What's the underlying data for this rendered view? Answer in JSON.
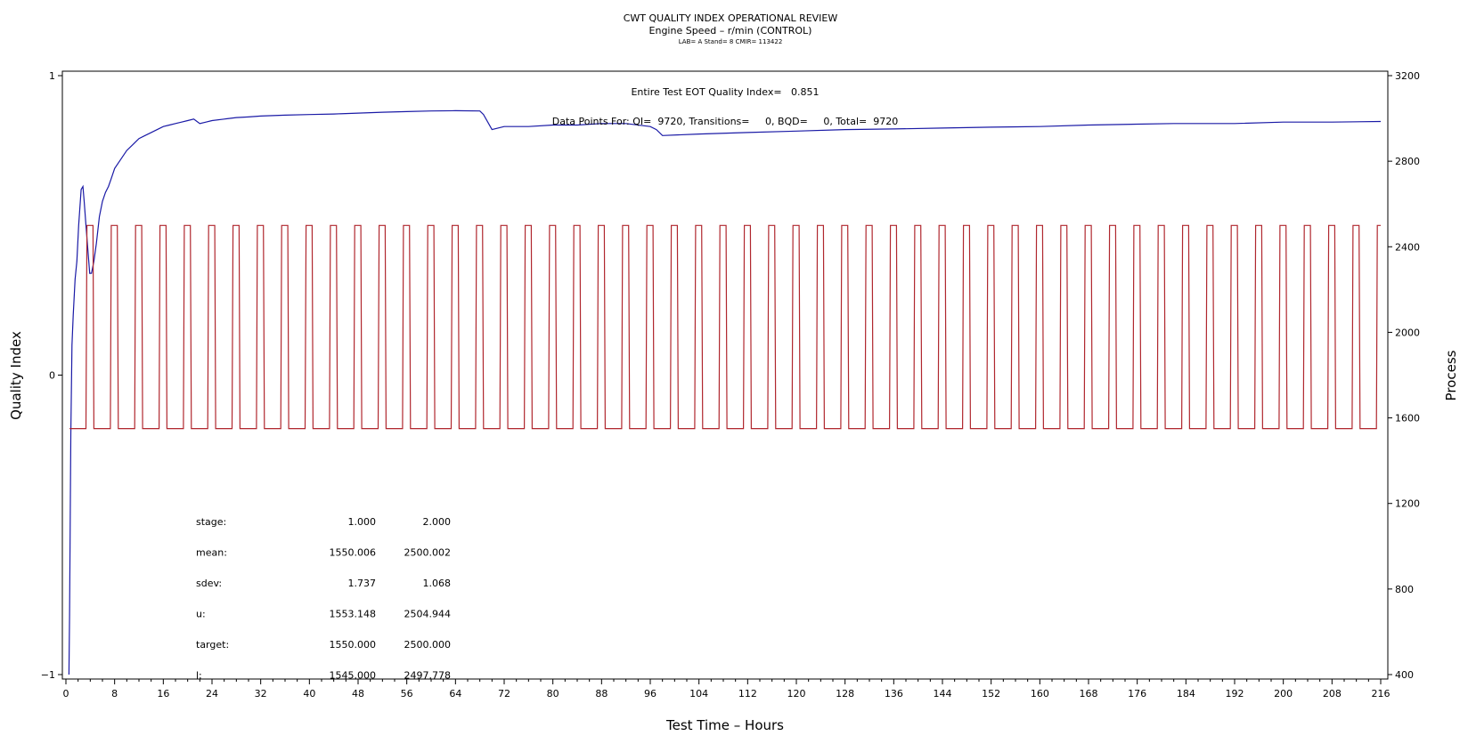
{
  "chart_data": {
    "type": "line",
    "title": "CWT QUALITY INDEX OPERATIONAL REVIEW",
    "subtitle": "Engine Speed – r/min (CONTROL)",
    "subtitle2": "LAB= A Stand= 8 CMIR= 113422",
    "xlabel": "Test Time – Hours",
    "ylabel_left": "Quality Index",
    "ylabel_right": "Process",
    "xlim": [
      0,
      216
    ],
    "ylim_left": [
      -1,
      1
    ],
    "ylim_right": [
      400,
      3200
    ],
    "x_ticks": [
      "0",
      "8",
      "16",
      "24",
      "32",
      "40",
      "48",
      "56",
      "64",
      "72",
      "80",
      "88",
      "96",
      "104",
      "112",
      "120",
      "128",
      "136",
      "144",
      "152",
      "160",
      "168",
      "176",
      "184",
      "192",
      "200",
      "208",
      "216"
    ],
    "y_left_ticks": [
      "−1",
      "0",
      "1"
    ],
    "y_right_ticks": [
      "400",
      "800",
      "1200",
      "1600",
      "2000",
      "2400",
      "2800",
      "3200"
    ],
    "annotations": {
      "eot": "Entire Test EOT Quality Index=   0.851",
      "points": "Data Points For: QI=  9720, Transitions=     0, BQD=     0, Total=  9720"
    },
    "stats_table": {
      "rows": [
        {
          "label": "stage:",
          "v1": "1.000",
          "v2": "2.000"
        },
        {
          "label": "mean:",
          "v1": "1550.006",
          "v2": "2500.002"
        },
        {
          "label": "sdev:",
          "v1": "1.737",
          "v2": "1.068"
        },
        {
          "label": "u:",
          "v1": "1553.148",
          "v2": "2504.944"
        },
        {
          "label": "target:",
          "v1": "1550.000",
          "v2": "2500.000"
        },
        {
          "label": "l:",
          "v1": "1545.000",
          "v2": "2497.778"
        }
      ]
    },
    "series": [
      {
        "axis": "left",
        "color": "#1a1aa6",
        "x": [
          0.5,
          0.6,
          0.7,
          0.8,
          1.0,
          1.2,
          1.5,
          1.8,
          2.1,
          2.5,
          2.8,
          3.0,
          3.3,
          3.6,
          3.9,
          4.2,
          4.6,
          5.0,
          5.5,
          6.0,
          6.5,
          7.0,
          7.5,
          8.0,
          9.0,
          10.0,
          11.0,
          12.0,
          13.0,
          14.0,
          15.0,
          16.0,
          17.0,
          18.0,
          19.0,
          20.0,
          21.0,
          22.0,
          23.0,
          24.0,
          26.0,
          28.0,
          30.0,
          32.0,
          36.0,
          40.0,
          44.0,
          48.0,
          52.0,
          56.0,
          60.0,
          64.0,
          68.0,
          68.6,
          70.0,
          72.0,
          76.0,
          80.0,
          84.0,
          88.0,
          92.0,
          96.0,
          97.0,
          98.0,
          104.0,
          112.0,
          120.0,
          128.0,
          136.0,
          144.0,
          152.0,
          160.0,
          168.0,
          176.0,
          182.0,
          183.0,
          184.0,
          192.0,
          200.0,
          208.0,
          216.0
        ],
        "values": [
          -1.0,
          -0.8,
          -0.5,
          -0.2,
          0.1,
          0.2,
          0.32,
          0.38,
          0.5,
          0.62,
          0.63,
          0.58,
          0.5,
          0.42,
          0.34,
          0.34,
          0.38,
          0.44,
          0.53,
          0.58,
          0.61,
          0.63,
          0.66,
          0.69,
          0.72,
          0.75,
          0.77,
          0.79,
          0.8,
          0.81,
          0.82,
          0.83,
          0.835,
          0.84,
          0.845,
          0.85,
          0.855,
          0.84,
          0.845,
          0.85,
          0.855,
          0.86,
          0.862,
          0.865,
          0.868,
          0.87,
          0.872,
          0.875,
          0.878,
          0.88,
          0.882,
          0.883,
          0.882,
          0.87,
          0.82,
          0.83,
          0.83,
          0.835,
          0.835,
          0.84,
          0.84,
          0.83,
          0.82,
          0.8,
          0.805,
          0.81,
          0.815,
          0.82,
          0.822,
          0.825,
          0.828,
          0.83,
          0.835,
          0.838,
          0.84,
          0.84,
          0.84,
          0.84,
          0.845,
          0.845,
          0.847
        ]
      },
      {
        "axis": "right",
        "color": "#b0272e",
        "type": "cycle",
        "x_start": 0.6,
        "x_end": 216,
        "period": 4.0,
        "high_duration": 1.0,
        "ramp": 0.15,
        "low": 1550,
        "high": 2500
      }
    ]
  }
}
